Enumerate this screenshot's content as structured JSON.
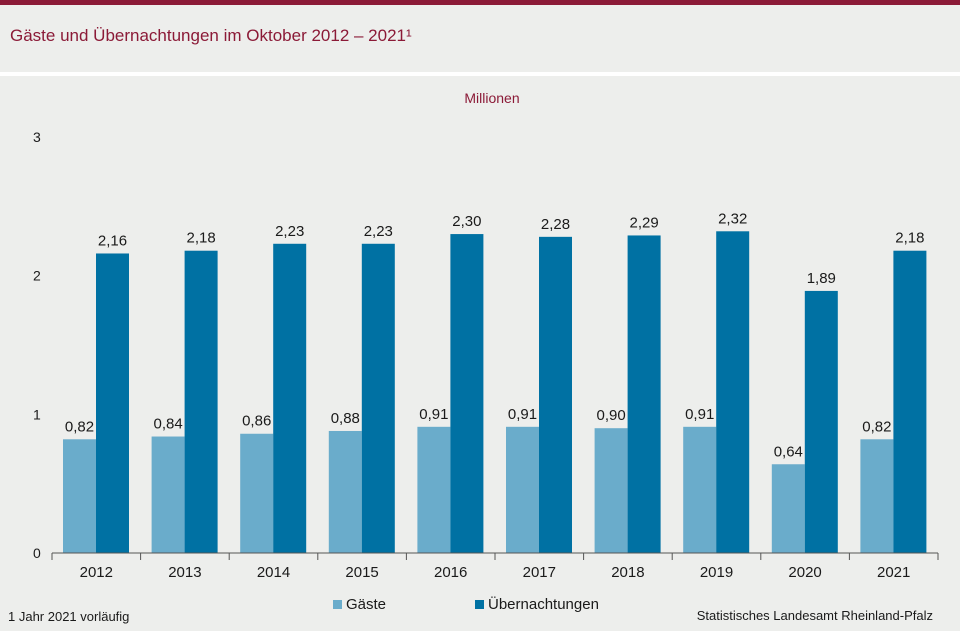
{
  "header": {
    "title": "Gäste und Übernachtungen im Oktober 2012 – 2021¹",
    "unit_label": "Millionen"
  },
  "footer": {
    "footnote": "1 Jahr 2021 vorläufig",
    "source": "Statistisches Landesamt  Rheinland-Pfalz"
  },
  "colors": {
    "accent": "#8b1a37",
    "gaeste": "#6aaccb",
    "uebernachtungen": "#0071a3"
  },
  "chart_data": {
    "type": "bar",
    "categories": [
      "2012",
      "2013",
      "2014",
      "2015",
      "2016",
      "2017",
      "2018",
      "2019",
      "2020",
      "2021"
    ],
    "series": [
      {
        "name": "Gäste",
        "values": [
          0.82,
          0.84,
          0.86,
          0.88,
          0.91,
          0.91,
          0.9,
          0.91,
          0.64,
          0.82
        ],
        "labels": [
          "0,82",
          "0,84",
          "0,86",
          "0,88",
          "0,91",
          "0,91",
          "0,90",
          "0,91",
          "0,64",
          "0,82"
        ]
      },
      {
        "name": "Übernachtungen",
        "values": [
          2.16,
          2.18,
          2.23,
          2.23,
          2.3,
          2.28,
          2.29,
          2.32,
          1.89,
          2.18
        ],
        "labels": [
          "2,16",
          "2,18",
          "2,23",
          "2,23",
          "2,30",
          "2,28",
          "2,29",
          "2,32",
          "1,89",
          "2,18"
        ]
      }
    ],
    "yticks": [
      "0",
      "1",
      "2",
      "3"
    ],
    "ylim": [
      0,
      3
    ],
    "grid": false,
    "legend_position": "bottom"
  }
}
